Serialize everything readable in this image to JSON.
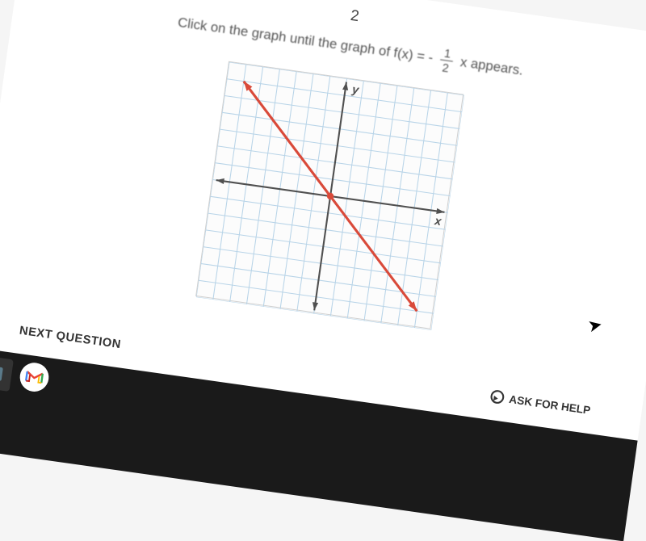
{
  "question": {
    "top_fragment": "2",
    "prefix": "Click on the graph until the graph of ",
    "func": "f(x) = -",
    "numerator": "1",
    "denominator": "2",
    "suffix": " x appears."
  },
  "graph": {
    "type": "line",
    "grid_count": 14,
    "grid_color": "#b8d4e8",
    "axis_color": "#505050",
    "background_color": "#fcfcfc",
    "line_color": "#d94a3a",
    "line_width": 3,
    "arrow_color": "#d94a3a",
    "y_label": "y",
    "x_label": "x",
    "label_color": "#505050",
    "label_fontsize": 14,
    "points": [
      {
        "gx": -6,
        "gy": 6
      },
      {
        "gx": 6,
        "gy": -6
      }
    ],
    "dot": {
      "gx": 0,
      "gy": 0,
      "color": "#d94a3a",
      "radius": 4
    }
  },
  "footer": {
    "next_label": "NEXT QUESTION",
    "help_label": "ASK FOR HELP"
  },
  "taskbar": {
    "icons": [
      "app-generic",
      "gmail"
    ]
  },
  "colors": {
    "page_bg": "#ffffff",
    "taskbar_bg": "#1a1a1a"
  }
}
